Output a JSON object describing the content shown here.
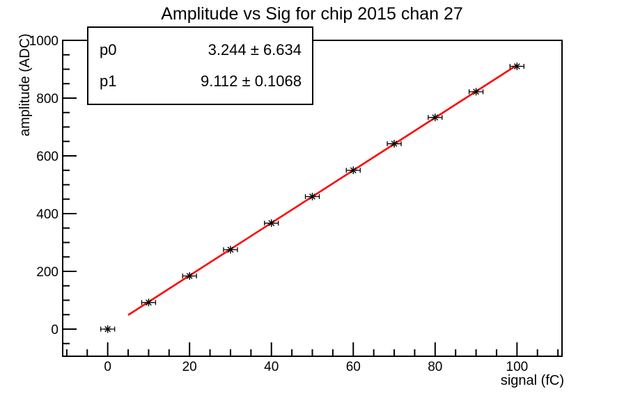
{
  "chart_data": {
    "type": "scatter",
    "title": "Amplitude vs Sig for chip 2015 chan 27",
    "xlabel": "signal (fC)",
    "ylabel": "amplitude (ADC)",
    "xlim": [
      -11,
      111
    ],
    "ylim": [
      -94,
      1000
    ],
    "x_major_ticks": [
      0,
      20,
      40,
      60,
      80,
      100
    ],
    "x_minor_step": 5,
    "y_major_ticks": [
      0,
      200,
      400,
      600,
      800,
      1000
    ],
    "y_minor_step": 50,
    "grid": false,
    "legend": "none",
    "axis_color": "#000000",
    "series": [
      {
        "name": "measured-points",
        "type": "points",
        "marker": "asterisk",
        "color": "#000000",
        "x": [
          0,
          10,
          20,
          30,
          40,
          50,
          60,
          70,
          80,
          90,
          100
        ],
        "y": [
          0,
          92,
          184,
          275,
          367,
          459,
          550,
          642,
          733,
          822,
          910
        ],
        "x_error": 1.7
      },
      {
        "name": "linear-fit",
        "type": "line",
        "color": "#ff0000",
        "x_range": [
          5,
          100
        ],
        "p0": 3.244,
        "p1": 9.112
      }
    ],
    "fit_result": {
      "p0": "3.244",
      "p0_error": "6.634",
      "p1": "9.112",
      "p1_error": "0.1068"
    }
  },
  "stats_box": {
    "rows": [
      {
        "name": "p0",
        "value": "3.244 ± 6.634"
      },
      {
        "name": "p1",
        "value": "9.112 ± 0.1068"
      }
    ]
  }
}
